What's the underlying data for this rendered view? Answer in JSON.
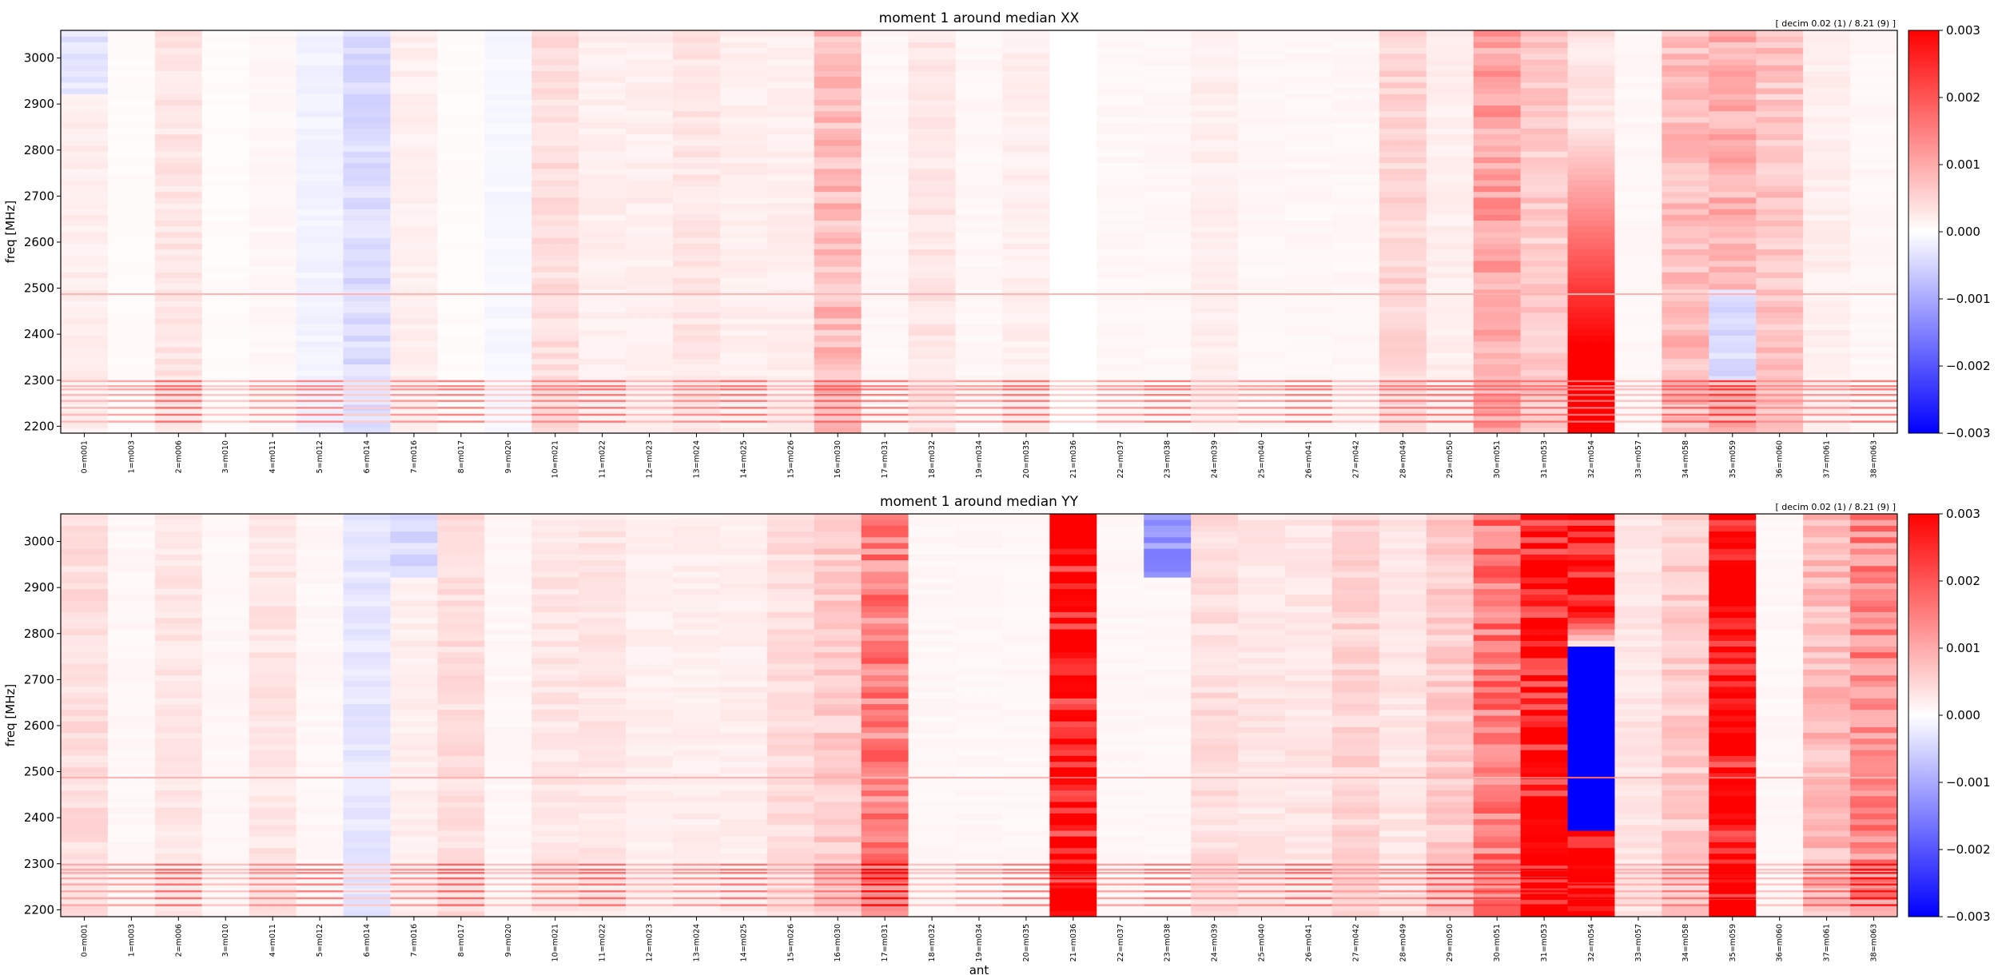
{
  "chart_data": [
    {
      "type": "heatmap",
      "title": "moment 1 around median    XX",
      "annotation": "[ decim 0.02 (1) / 8.21 (9) ]",
      "ylabel": "freq [MHz]",
      "xlabel": "",
      "ylim": [
        2185,
        3060
      ],
      "yticks": [
        2200,
        2300,
        2400,
        2500,
        2600,
        2700,
        2800,
        2900,
        3000
      ],
      "columns": [
        {
          "label": "0=m001",
          "base": 0.0002,
          "top": -0.0003
        },
        {
          "label": "1=m003",
          "base": 5e-05
        },
        {
          "label": "2=m006",
          "base": 0.0003
        },
        {
          "label": "3=m010",
          "base": 5e-05
        },
        {
          "label": "4=m011",
          "base": 0.0001
        },
        {
          "label": "5=m012",
          "base": -0.00015
        },
        {
          "label": "6=m014",
          "base": -0.0004
        },
        {
          "label": "7=m016",
          "base": 0.0002
        },
        {
          "label": "8=m017",
          "base": 5e-05
        },
        {
          "label": "9=m020",
          "base": -0.0001
        },
        {
          "label": "10=m021",
          "base": 0.0004
        },
        {
          "label": "11=m022",
          "base": 0.0002
        },
        {
          "label": "12=m023",
          "base": 0.0002
        },
        {
          "label": "13=m024",
          "base": 0.0003
        },
        {
          "label": "14=m025",
          "base": 0.0002
        },
        {
          "label": "15=m026",
          "base": 0.0002
        },
        {
          "label": "16=m030",
          "base": 0.0008
        },
        {
          "label": "17=m031",
          "base": 0.0001
        },
        {
          "label": "18=m032",
          "base": 0.0003
        },
        {
          "label": "19=m034",
          "base": 0.0001
        },
        {
          "label": "20=m035",
          "base": 0.0002
        },
        {
          "label": "21=m036",
          "base": 0.0
        },
        {
          "label": "22=m037",
          "base": 0.0001
        },
        {
          "label": "23=m038",
          "base": 0.0001
        },
        {
          "label": "24=m039",
          "base": 0.0002
        },
        {
          "label": "25=m040",
          "base": 0.0001
        },
        {
          "label": "26=m041",
          "base": 0.0001
        },
        {
          "label": "27=m042",
          "base": 0.0001
        },
        {
          "label": "28=m049",
          "base": 0.0005
        },
        {
          "label": "29=m050",
          "base": 0.0002
        },
        {
          "label": "30=m051",
          "base": 0.0011
        },
        {
          "label": "31=m053",
          "base": 0.0006
        },
        {
          "label": "32=m054",
          "base": 0.0003,
          "ramp": [
            2850,
            2380,
            0.003
          ]
        },
        {
          "label": "33=m057",
          "base": 0.0001
        },
        {
          "label": "34=m058",
          "base": 0.0008
        },
        {
          "label": "35=m059",
          "base": 0.0009,
          "low": [
            2300,
            2500,
            -0.0004
          ]
        },
        {
          "label": "36=m060",
          "base": 0.0007
        },
        {
          "label": "37=m061",
          "base": 0.0002
        },
        {
          "label": "38=m063",
          "base": 0.0001
        }
      ]
    },
    {
      "type": "heatmap",
      "title": "moment 1 around median    YY",
      "annotation": "[ decim 0.02 (1) / 8.21 (9) ]",
      "ylabel": "freq [MHz]",
      "xlabel": "ant",
      "ylim": [
        2185,
        3060
      ],
      "yticks": [
        2200,
        2300,
        2400,
        2500,
        2600,
        2700,
        2800,
        2900,
        3000
      ],
      "columns": [
        {
          "label": "0=m001",
          "base": 0.0004
        },
        {
          "label": "1=m003",
          "base": 0.0001
        },
        {
          "label": "2=m006",
          "base": 0.0003
        },
        {
          "label": "3=m010",
          "base": 0.0001
        },
        {
          "label": "4=m011",
          "base": 0.0003
        },
        {
          "label": "5=m012",
          "base": 0.0001
        },
        {
          "label": "6=m014",
          "base": -0.0003
        },
        {
          "label": "7=m016",
          "base": 0.0002,
          "top": -0.0004
        },
        {
          "label": "8=m017",
          "base": 0.0004
        },
        {
          "label": "9=m020",
          "base": 0.0001
        },
        {
          "label": "10=m021",
          "base": 0.0003
        },
        {
          "label": "11=m022",
          "base": 0.0003
        },
        {
          "label": "12=m023",
          "base": 0.0002
        },
        {
          "label": "13=m024",
          "base": 0.0002
        },
        {
          "label": "14=m025",
          "base": 0.0002
        },
        {
          "label": "15=m026",
          "base": 0.0004
        },
        {
          "label": "16=m030",
          "base": 0.0006
        },
        {
          "label": "17=m031",
          "base": 0.0015
        },
        {
          "label": "18=m032",
          "base": 0.0001
        },
        {
          "label": "19=m034",
          "base": 0.0001
        },
        {
          "label": "20=m035",
          "base": 0.0001
        },
        {
          "label": "21=m036",
          "base": 0.003
        },
        {
          "label": "22=m037",
          "base": 0.0001
        },
        {
          "label": "23=m038",
          "base": 0.0001,
          "top": -0.0012
        },
        {
          "label": "24=m039",
          "base": 0.0004
        },
        {
          "label": "25=m040",
          "base": 0.0003
        },
        {
          "label": "26=m041",
          "base": 0.0003
        },
        {
          "label": "27=m042",
          "base": 0.0005
        },
        {
          "label": "28=m049",
          "base": 0.0003
        },
        {
          "label": "29=m050",
          "base": 0.0006
        },
        {
          "label": "30=m051",
          "base": 0.0016
        },
        {
          "label": "31=m053",
          "base": 0.003
        },
        {
          "label": "32=m054",
          "base": 0.003,
          "split": [
            2850,
            2770,
            2370,
            -0.003
          ]
        },
        {
          "label": "33=m057",
          "base": 0.0003
        },
        {
          "label": "34=m058",
          "base": 0.0006
        },
        {
          "label": "35=m059",
          "base": 0.003
        },
        {
          "label": "36=m060",
          "base": 0.0001
        },
        {
          "label": "37=m061",
          "base": 0.0008
        },
        {
          "label": "38=m063",
          "base": 0.0014
        }
      ]
    }
  ],
  "colorbar": {
    "ticks": [
      "0.003",
      "0.002",
      "0.001",
      "0.000",
      "−0.001",
      "−0.002",
      "−0.003"
    ],
    "vmin": -0.003,
    "vmax": 0.003,
    "colors": [
      "#0000ff",
      "#ffffff",
      "#ff0000"
    ]
  }
}
